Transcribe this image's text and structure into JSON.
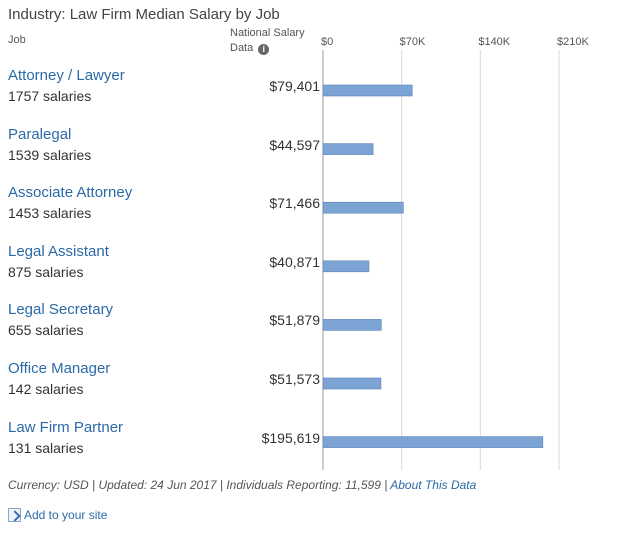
{
  "title": "Industry: Law Firm Median Salary by Job",
  "headers": {
    "job": "Job",
    "national_line1": "National Salary",
    "national_line2": "Data",
    "info_icon": "info-icon"
  },
  "chart_data": {
    "type": "bar",
    "orientation": "horizontal",
    "title": "Industry: Law Firm Median Salary by Job",
    "xlim": [
      0,
      210000
    ],
    "ticks": [
      {
        "value": 0,
        "label": "$0"
      },
      {
        "value": 70000,
        "label": "$70K"
      },
      {
        "value": 140000,
        "label": "$140K"
      },
      {
        "value": 210000,
        "label": "$210K"
      }
    ],
    "grid": true,
    "bar_color": "#7ba3d4",
    "categories": [
      "Attorney / Lawyer",
      "Paralegal",
      "Associate Attorney",
      "Legal Assistant",
      "Legal Secretary",
      "Office Manager",
      "Law Firm Partner"
    ],
    "counts": [
      "1757 salaries",
      "1539 salaries",
      "1453 salaries",
      "875 salaries",
      "655 salaries",
      "142 salaries",
      "131 salaries"
    ],
    "values": [
      79401,
      44597,
      71466,
      40871,
      51879,
      51573,
      195619
    ],
    "value_labels": [
      "$79,401",
      "$44,597",
      "$71,466",
      "$40,871",
      "$51,879",
      "$51,573",
      "$195,619"
    ]
  },
  "footer": {
    "text": "Currency: USD | Updated: 24 Jun 2017 | Individuals Reporting: 11,599 |",
    "link": "About This Data"
  },
  "add_to_site": {
    "icon": "add-site-icon",
    "label": "Add to your site"
  }
}
